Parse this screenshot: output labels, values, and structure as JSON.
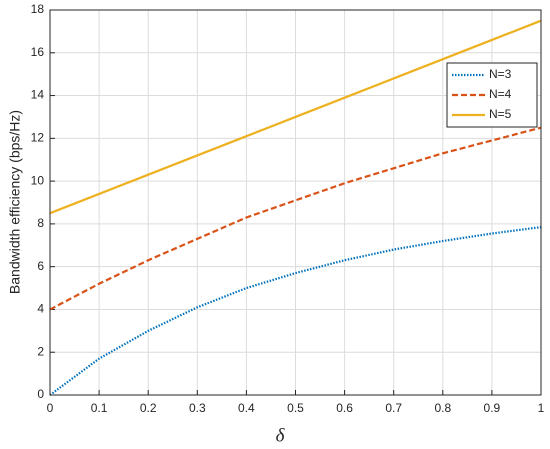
{
  "chart_data": {
    "type": "line",
    "xlabel": "δ",
    "ylabel": "Bandwidth efficiency (bps/Hz)",
    "x": [
      0,
      0.1,
      0.2,
      0.3,
      0.4,
      0.5,
      0.6,
      0.7,
      0.8,
      0.9,
      1
    ],
    "series": [
      {
        "name": "N=3",
        "color": "#0072bd",
        "dash": "dotted",
        "values": [
          0,
          1.7,
          3.0,
          4.1,
          5.0,
          5.7,
          6.3,
          6.8,
          7.2,
          7.55,
          7.85
        ]
      },
      {
        "name": "N=4",
        "color": "#d95319",
        "dash": "dashed",
        "values": [
          4.0,
          5.2,
          6.3,
          7.3,
          8.3,
          9.1,
          9.9,
          10.6,
          11.3,
          11.9,
          12.5
        ]
      },
      {
        "name": "N=5",
        "color": "#edb120",
        "dash": "solid",
        "values": [
          8.5,
          9.4,
          10.3,
          11.2,
          12.1,
          13.0,
          13.9,
          14.8,
          15.7,
          16.6,
          17.5
        ]
      }
    ],
    "xlim": [
      0,
      1
    ],
    "xticks": [
      0,
      0.1,
      0.2,
      0.3,
      0.4,
      0.5,
      0.6,
      0.7,
      0.8,
      0.9,
      1
    ],
    "ylim": [
      0,
      18
    ],
    "yticks": [
      0,
      2,
      4,
      6,
      8,
      10,
      12,
      14,
      16,
      18
    ],
    "grid": true,
    "legend": "upper right"
  }
}
